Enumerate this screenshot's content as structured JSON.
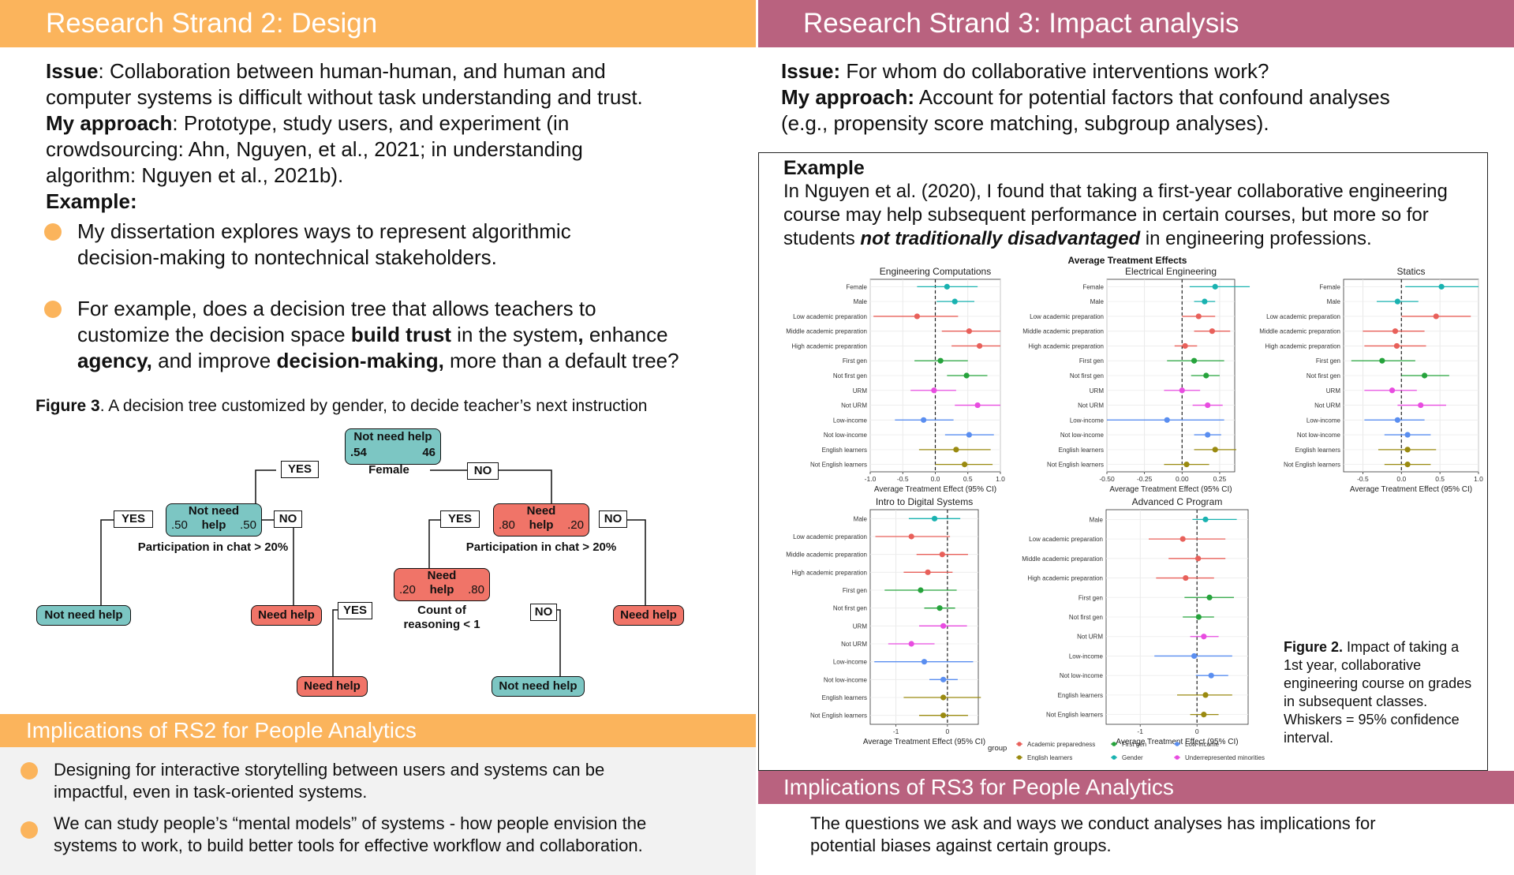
{
  "left": {
    "header": "Research Strand 2: Design",
    "issue_label": "Issue",
    "issue_text_1": ": Collaboration between human-human, and human and",
    "issue_text_2": "computer systems is difficult without task understanding and trust.",
    "approach_label": "My approach",
    "approach_text_1": ": Prototype, study users, and experiment (in",
    "approach_text_2": "crowdsourcing: Ahn, Nguyen, et al., 2021; in understanding",
    "approach_text_3": "algorithm: Nguyen et al., 2021b).",
    "example_label": "Example:",
    "bullet1_line1": "My dissertation explores ways to represent algorithmic",
    "bullet1_line2": "decision-making to nontechnical stakeholders.",
    "bullet2_line1": "For example, does a decision tree that allows teachers to",
    "bullet2_l2_a": "customize the decision space ",
    "bullet2_l2_b": "build trust",
    "bullet2_l2_c": " in the system",
    "bullet2_l2_d": ",",
    "bullet2_l2_e": " enhance",
    "bullet2_l3_a": "agency,",
    "bullet2_l3_b": " and improve ",
    "bullet2_l3_c": "decision-making,",
    "bullet2_l3_d": " more than a default tree?",
    "figure_label": "Figure 3",
    "figure_caption": ". A decision tree customized by gender, to decide teacher’s next instruction",
    "tree": {
      "root": {
        "label": "Not need help",
        "left": ".54",
        "right": "46"
      },
      "root_split": "Female",
      "yes": "YES",
      "no": "NO",
      "n1": {
        "label_1": "Not need",
        "label_2": "help",
        "left": ".50",
        "right": ".50"
      },
      "n1_split": "Participation in chat > 20%",
      "n2": {
        "label_1": "Need",
        "label_2": "help",
        "left": ".80",
        "right": ".20"
      },
      "n2_split": "Participation in chat > 20%",
      "n3": {
        "label_1": "Need",
        "label_2": "help",
        "left": ".20",
        "right": ".80"
      },
      "n3_split_1": "Count of",
      "n3_split_2": "reasoning < 1",
      "leaf_not_need": "Not need help",
      "leaf_need": "Need help"
    },
    "implications_header": "Implications of RS2 for People Analytics",
    "imp1_line1": "Designing for interactive storytelling between users and systems can be",
    "imp1_line2": "impactful, even in task-oriented systems.",
    "imp2_line1": "We can study people’s “mental models” of systems - how people envision the",
    "imp2_line2": "systems to work, to build better tools for effective workflow and collaboration."
  },
  "right": {
    "header": "Research Strand 3: Impact analysis",
    "issue_label": "Issue:",
    "issue_text": " For whom do collaborative interventions work?",
    "approach_label": "My approach:",
    "approach_text_1": " Account for potential factors that confound analyses",
    "approach_text_2": "(e.g., propensity score matching, subgroup analyses).",
    "example_label": "Example",
    "ex_line1": "In Nguyen et al. (2020), I found that taking a first-year collaborative engineering",
    "ex_line2": "course may help subsequent performance in certain courses, but more so for",
    "ex_line3_a": "students ",
    "ex_line3_b": "not traditionally disadvantaged",
    "ex_line3_c": " in engineering professions.",
    "fig2_label": "Figure 2.",
    "fig2_l1": " Impact of taking a",
    "fig2_l2": "1st year, collaborative",
    "fig2_l3": "engineering course on grades",
    "fig2_l4": "in subsequent classes.",
    "fig2_l5": "Whiskers = 95% confidence",
    "fig2_l6": "interval.",
    "implications_header": "Implications of RS3 for People Analytics",
    "imp_line1": "The questions we ask and ways we conduct analyses has implications for",
    "imp_line2": "potential biases against certain groups."
  },
  "colors": {
    "orange": "#fbb45c",
    "rose": "#b9627f",
    "teal": "#7cc6c3",
    "salmon": "#f07468"
  },
  "chart_data": {
    "type": "scatter",
    "title": "Average Treatment Effects",
    "xlabel": "Average Treatment Effect (95% CI)",
    "legend": {
      "title": "group",
      "placement": "bottom",
      "entries": [
        {
          "name": "Academic preparedness",
          "color": "#e8605a"
        },
        {
          "name": "English learners",
          "color": "#9a8a10"
        },
        {
          "name": "First gen",
          "color": "#26a33c"
        },
        {
          "name": "Gender",
          "color": "#19b2b0"
        },
        {
          "name": "Low-income",
          "color": "#5a8ef0"
        },
        {
          "name": "Underrepresented minorities",
          "color": "#e84ce0"
        }
      ]
    },
    "panels": [
      {
        "title": "Engineering Computations",
        "xlim": [
          -1.0,
          1.0
        ],
        "ticks": [
          "-1.0",
          "-0.5",
          "0.0",
          "0.5",
          "1.0"
        ],
        "tick_values": [
          -1.0,
          -0.5,
          0.0,
          0.5,
          1.0
        ],
        "rows": [
          {
            "label": "Female",
            "group": "Gender",
            "est": 0.18,
            "lo": -0.28,
            "hi": 0.65
          },
          {
            "label": "Male",
            "group": "Gender",
            "est": 0.3,
            "lo": 0.02,
            "hi": 0.6
          },
          {
            "label": "Low academic preparation",
            "group": "Academic preparedness",
            "est": -0.28,
            "lo": -0.95,
            "hi": 0.35
          },
          {
            "label": "Middle academic preparation",
            "group": "Academic preparedness",
            "est": 0.52,
            "lo": 0.1,
            "hi": 1.0
          },
          {
            "label": "High academic preparation",
            "group": "Academic preparedness",
            "est": 0.68,
            "lo": 0.25,
            "hi": 1.0
          },
          {
            "label": "First gen",
            "group": "First gen",
            "est": 0.08,
            "lo": -0.32,
            "hi": 0.5
          },
          {
            "label": "Not first gen",
            "group": "First gen",
            "est": 0.48,
            "lo": 0.18,
            "hi": 0.8
          },
          {
            "label": "URM",
            "group": "Underrepresented minorities",
            "est": -0.02,
            "lo": -0.38,
            "hi": 0.32
          },
          {
            "label": "Not URM",
            "group": "Underrepresented minorities",
            "est": 0.65,
            "lo": 0.3,
            "hi": 1.0
          },
          {
            "label": "Low-income",
            "group": "Low-income",
            "est": -0.18,
            "lo": -0.62,
            "hi": 0.28
          },
          {
            "label": "Not low-income",
            "group": "Low-income",
            "est": 0.52,
            "lo": 0.15,
            "hi": 0.9
          },
          {
            "label": "English learners",
            "group": "English learners",
            "est": 0.32,
            "lo": -0.25,
            "hi": 0.85
          },
          {
            "label": "Not English learners",
            "group": "English learners",
            "est": 0.45,
            "lo": 0.0,
            "hi": 0.88
          }
        ]
      },
      {
        "title": "Electrical Engineering",
        "xlim": [
          -0.5,
          0.35
        ],
        "ticks": [
          "-0.50",
          "-0.25",
          "0.00",
          "0.25"
        ],
        "tick_values": [
          -0.5,
          -0.25,
          0.0,
          0.25
        ],
        "rows": [
          {
            "label": "Female",
            "group": "Gender",
            "est": 0.22,
            "lo": 0.05,
            "hi": 0.45
          },
          {
            "label": "Male",
            "group": "Gender",
            "est": 0.15,
            "lo": 0.08,
            "hi": 0.22
          },
          {
            "label": "Low academic preparation",
            "group": "Academic preparedness",
            "est": 0.11,
            "lo": 0.0,
            "hi": 0.22
          },
          {
            "label": "Middle academic preparation",
            "group": "Academic preparedness",
            "est": 0.2,
            "lo": 0.08,
            "hi": 0.32
          },
          {
            "label": "High academic preparation",
            "group": "Academic preparedness",
            "est": 0.02,
            "lo": -0.05,
            "hi": 0.1
          },
          {
            "label": "First gen",
            "group": "First gen",
            "est": 0.08,
            "lo": -0.1,
            "hi": 0.28
          },
          {
            "label": "Not first gen",
            "group": "First gen",
            "est": 0.16,
            "lo": 0.06,
            "hi": 0.25
          },
          {
            "label": "URM",
            "group": "Underrepresented minorities",
            "est": 0.0,
            "lo": -0.12,
            "hi": 0.12
          },
          {
            "label": "Not URM",
            "group": "Underrepresented minorities",
            "est": 0.17,
            "lo": 0.07,
            "hi": 0.27
          },
          {
            "label": "Low-income",
            "group": "Low-income",
            "est": -0.1,
            "lo": -0.5,
            "hi": 0.28
          },
          {
            "label": "Not low-income",
            "group": "Low-income",
            "est": 0.17,
            "lo": 0.08,
            "hi": 0.26
          },
          {
            "label": "English learners",
            "group": "English learners",
            "est": 0.22,
            "lo": 0.08,
            "hi": 0.36
          },
          {
            "label": "Not English learners",
            "group": "English learners",
            "est": 0.03,
            "lo": -0.12,
            "hi": 0.18
          }
        ]
      },
      {
        "title": "Statics",
        "xlim": [
          -0.75,
          1.0
        ],
        "ticks": [
          "-0.5",
          "0.0",
          "0.5",
          "1.0"
        ],
        "tick_values": [
          -0.5,
          0.0,
          0.5,
          1.0
        ],
        "rows": [
          {
            "label": "Female",
            "group": "Gender",
            "est": 0.52,
            "lo": 0.05,
            "hi": 1.0
          },
          {
            "label": "Male",
            "group": "Gender",
            "est": -0.05,
            "lo": -0.32,
            "hi": 0.22
          },
          {
            "label": "Low academic preparation",
            "group": "Academic preparedness",
            "est": 0.45,
            "lo": 0.0,
            "hi": 0.9
          },
          {
            "label": "Middle academic preparation",
            "group": "Academic preparedness",
            "est": -0.08,
            "lo": -0.5,
            "hi": 0.3
          },
          {
            "label": "High academic preparation",
            "group": "Academic preparedness",
            "est": -0.06,
            "lo": -0.48,
            "hi": 0.32
          },
          {
            "label": "First gen",
            "group": "First gen",
            "est": -0.25,
            "lo": -0.65,
            "hi": 0.18
          },
          {
            "label": "Not first gen",
            "group": "First gen",
            "est": 0.3,
            "lo": 0.0,
            "hi": 0.62
          },
          {
            "label": "URM",
            "group": "Underrepresented minorities",
            "est": -0.12,
            "lo": -0.48,
            "hi": 0.2
          },
          {
            "label": "Not URM",
            "group": "Underrepresented minorities",
            "est": 0.25,
            "lo": -0.05,
            "hi": 0.58
          },
          {
            "label": "Low-income",
            "group": "Low-income",
            "est": -0.05,
            "lo": -0.48,
            "hi": 0.3
          },
          {
            "label": "Not low-income",
            "group": "Low-income",
            "est": 0.08,
            "lo": -0.22,
            "hi": 0.38
          },
          {
            "label": "English learners",
            "group": "English learners",
            "est": 0.08,
            "lo": -0.3,
            "hi": 0.45
          },
          {
            "label": "Not English learners",
            "group": "English learners",
            "est": 0.08,
            "lo": -0.22,
            "hi": 0.38
          }
        ]
      },
      {
        "title": "Intro to Digital Systems",
        "xlim": [
          -1.5,
          0.6
        ],
        "ticks": [
          "-1",
          "0"
        ],
        "tick_values": [
          -1,
          0
        ],
        "rows": [
          {
            "label": "Male",
            "group": "Gender",
            "est": -0.25,
            "lo": -0.75,
            "hi": 0.25
          },
          {
            "label": "Low academic preparation",
            "group": "Academic preparedness",
            "est": -0.7,
            "lo": -1.4,
            "hi": 0.05
          },
          {
            "label": "Middle academic preparation",
            "group": "Academic preparedness",
            "est": -0.1,
            "lo": -0.6,
            "hi": 0.4
          },
          {
            "label": "High academic preparation",
            "group": "Academic preparedness",
            "est": -0.38,
            "lo": -0.85,
            "hi": 0.1
          },
          {
            "label": "First gen",
            "group": "First gen",
            "est": -0.52,
            "lo": -1.22,
            "hi": 0.18
          },
          {
            "label": "Not first gen",
            "group": "First gen",
            "est": -0.15,
            "lo": -0.45,
            "hi": 0.15
          },
          {
            "label": "URM",
            "group": "Underrepresented minorities",
            "est": -0.08,
            "lo": -0.55,
            "hi": 0.38
          },
          {
            "label": "Not URM",
            "group": "Underrepresented minorities",
            "est": -0.7,
            "lo": -1.15,
            "hi": -0.25
          },
          {
            "label": "Low-income",
            "group": "Low-income",
            "est": -0.45,
            "lo": -1.42,
            "hi": 0.5
          },
          {
            "label": "Not low-income",
            "group": "Low-income",
            "est": -0.08,
            "lo": -0.35,
            "hi": 0.2
          },
          {
            "label": "English learners",
            "group": "English learners",
            "est": -0.08,
            "lo": -0.85,
            "hi": 0.65
          },
          {
            "label": "Not English learners",
            "group": "English learners",
            "est": -0.08,
            "lo": -0.55,
            "hi": 0.4
          }
        ]
      },
      {
        "title": "Advanced C Program",
        "xlim": [
          -1.6,
          0.9
        ],
        "ticks": [
          "-1",
          "0"
        ],
        "tick_values": [
          -1,
          0
        ],
        "rows": [
          {
            "label": "Male",
            "group": "Gender",
            "est": 0.15,
            "lo": -0.08,
            "hi": 0.7
          },
          {
            "label": "Low academic preparation",
            "group": "Academic preparedness",
            "est": -0.25,
            "lo": -0.85,
            "hi": 0.5
          },
          {
            "label": "Middle academic preparation",
            "group": "Academic preparedness",
            "est": 0.02,
            "lo": -0.5,
            "hi": 0.5
          },
          {
            "label": "High academic preparation",
            "group": "Academic preparedness",
            "est": -0.2,
            "lo": -0.72,
            "hi": 0.3
          },
          {
            "label": "First gen",
            "group": "First gen",
            "est": 0.22,
            "lo": -0.22,
            "hi": 0.65
          },
          {
            "label": "Not first gen",
            "group": "First gen",
            "est": 0.03,
            "lo": -0.25,
            "hi": 0.3
          },
          {
            "label": "Not URM",
            "group": "Underrepresented minorities",
            "est": 0.12,
            "lo": -0.12,
            "hi": 0.38
          },
          {
            "label": "Low-income",
            "group": "Low-income",
            "est": -0.05,
            "lo": -0.75,
            "hi": 0.62
          },
          {
            "label": "Not low-income",
            "group": "Low-income",
            "est": 0.25,
            "lo": -0.02,
            "hi": 0.55
          },
          {
            "label": "English learners",
            "group": "English learners",
            "est": 0.15,
            "lo": -0.35,
            "hi": 0.62
          },
          {
            "label": "Not English learners",
            "group": "English learners",
            "est": 0.12,
            "lo": -0.12,
            "hi": 0.38
          }
        ]
      }
    ]
  }
}
